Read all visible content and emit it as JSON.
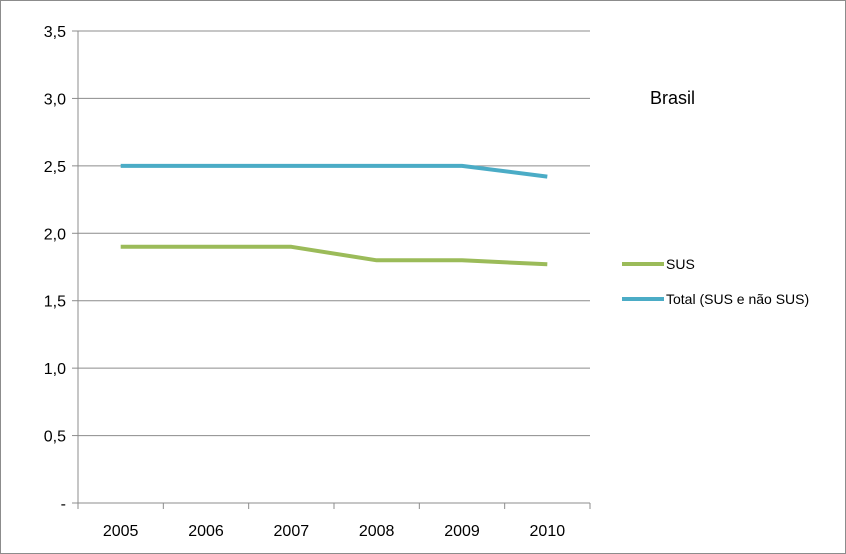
{
  "chart_data": {
    "type": "line",
    "categories": [
      "2005",
      "2006",
      "2007",
      "2008",
      "2009",
      "2010"
    ],
    "series": [
      {
        "name": "SUS",
        "values": [
          1.9,
          1.9,
          1.9,
          1.8,
          1.8,
          1.77
        ],
        "color": "#9bbb59"
      },
      {
        "name": "Total (SUS e não SUS)",
        "values": [
          2.5,
          2.5,
          2.5,
          2.5,
          2.5,
          2.42
        ],
        "color": "#4bacc6"
      }
    ],
    "ylim": [
      0,
      3.5
    ],
    "y_ticks": [
      {
        "value": 0,
        "label": "-"
      },
      {
        "value": 0.5,
        "label": "0,5"
      },
      {
        "value": 1.0,
        "label": "1,0"
      },
      {
        "value": 1.5,
        "label": "1,5"
      },
      {
        "value": 2.0,
        "label": "2,0"
      },
      {
        "value": 2.5,
        "label": "2,5"
      },
      {
        "value": 3.0,
        "label": "3,0"
      },
      {
        "value": 3.5,
        "label": "3,5"
      }
    ],
    "annotation": "Brasil",
    "grid": true,
    "legend_position": "right"
  }
}
